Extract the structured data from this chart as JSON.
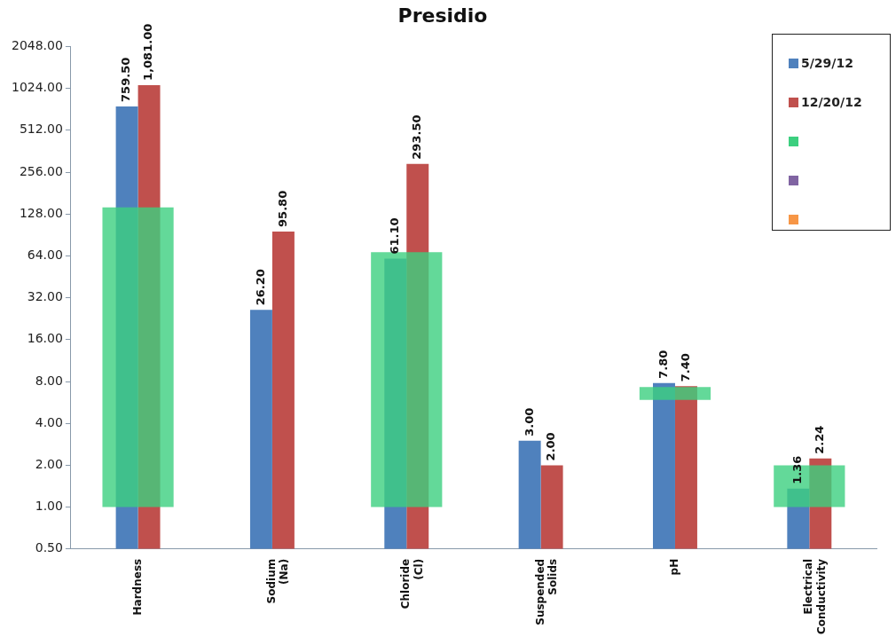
{
  "chart_data": {
    "type": "bar",
    "title": "Presidio",
    "categories": [
      "Hardness",
      "Sodium (Na)",
      "Chloride (Cl)",
      "Suspended Solids",
      "pH",
      "Electrical Conductivity"
    ],
    "log": true,
    "ylim": [
      0.5,
      2048
    ],
    "yticks": [
      {
        "value": 0.5,
        "label": "0.50"
      },
      {
        "value": 1,
        "label": "1.00"
      },
      {
        "value": 2,
        "label": "2.00"
      },
      {
        "value": 4,
        "label": "4.00"
      },
      {
        "value": 8,
        "label": "8.00"
      },
      {
        "value": 16,
        "label": "16.00"
      },
      {
        "value": 32,
        "label": "32.00"
      },
      {
        "value": 64,
        "label": "64.00"
      },
      {
        "value": 128,
        "label": "128.00"
      },
      {
        "value": 256,
        "label": "256.00"
      },
      {
        "value": 512,
        "label": "512.00"
      },
      {
        "value": 1024,
        "label": "1024.00"
      },
      {
        "value": 2048,
        "label": "2048.00"
      }
    ],
    "grid": false,
    "legend": "top right",
    "series": [
      {
        "name": "5/29/12",
        "color": "#4f81bd",
        "values": [
          759.5,
          26.2,
          61.1,
          3,
          7.8,
          1.36
        ],
        "value_labels": [
          "759.50",
          "26.20",
          "61.10",
          "3.00",
          "7.80",
          "1.36"
        ]
      },
      {
        "name": "12/20/12",
        "color": "#c0504d",
        "values": [
          1081,
          95.8,
          293.5,
          2,
          7.4,
          2.24
        ],
        "value_labels": [
          "1,081.00",
          "95.80",
          "293.50",
          "2.00",
          "7.40",
          "2.24"
        ]
      },
      {
        "color": "#3ccf7f",
        "values": [
          142,
          null,
          67,
          null,
          1.4,
          1
        ],
        "base": [
          1,
          null,
          1,
          null,
          5.9,
          1
        ]
      },
      {
        "color": "#8064a2",
        "values": [
          null,
          null,
          null,
          null,
          null,
          null
        ]
      },
      {
        "color": "#f79646",
        "values": [
          null,
          null,
          null,
          null,
          null,
          null
        ]
      }
    ]
  }
}
